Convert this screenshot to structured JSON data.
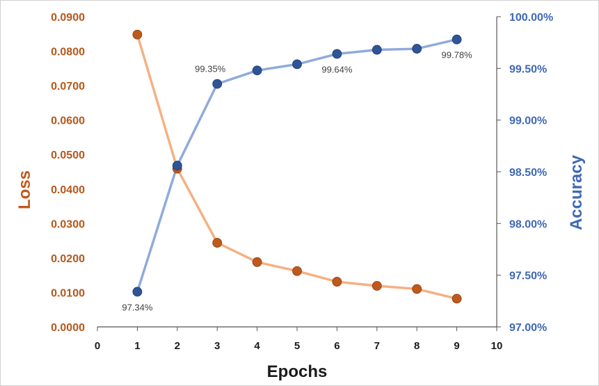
{
  "chart_data": {
    "type": "line",
    "title": "",
    "xlabel": "Epochs",
    "ylabel_left": "Loss",
    "ylabel_right": "Accuracy",
    "xlim": [
      0,
      10
    ],
    "x_ticks": [
      "0",
      "1",
      "2",
      "3",
      "4",
      "5",
      "6",
      "7",
      "8",
      "9",
      "10"
    ],
    "ylim_left": [
      0,
      0.09
    ],
    "y_ticks_left": [
      "0.0000",
      "0.0100",
      "0.0200",
      "0.0300",
      "0.0400",
      "0.0500",
      "0.0600",
      "0.0700",
      "0.0800",
      "0.0900"
    ],
    "ylim_right": [
      97.0,
      100.0
    ],
    "y_ticks_right": [
      "97.00%",
      "97.50%",
      "98.00%",
      "98.50%",
      "99.00%",
      "99.50%",
      "100.00%"
    ],
    "grid": false,
    "series": [
      {
        "name": "",
        "axis": "left",
        "color": "#c0591c",
        "line_color": "#f4b183",
        "x": [
          1,
          2,
          3,
          4,
          5,
          6,
          7,
          8,
          9
        ],
        "values": [
          0.0848,
          0.0459,
          0.0244,
          0.0188,
          0.0162,
          0.0131,
          0.0119,
          0.011,
          0.0082
        ]
      },
      {
        "name": "",
        "axis": "right",
        "color": "#2f5597",
        "line_color": "#8faadc",
        "x": [
          1,
          2,
          3,
          4,
          5,
          6,
          7,
          8,
          9
        ],
        "values": [
          97.34,
          98.56,
          99.35,
          99.48,
          99.54,
          99.64,
          99.68,
          99.69,
          99.78
        ]
      }
    ],
    "annotations": [
      {
        "series": 1,
        "point": 0,
        "text": "97.34%",
        "pos": "below"
      },
      {
        "series": 1,
        "point": 2,
        "text": "99.35%",
        "pos": "above-left"
      },
      {
        "series": 1,
        "point": 5,
        "text": "99.64%",
        "pos": "below"
      },
      {
        "series": 1,
        "point": 8,
        "text": "99.78%",
        "pos": "below"
      }
    ]
  }
}
